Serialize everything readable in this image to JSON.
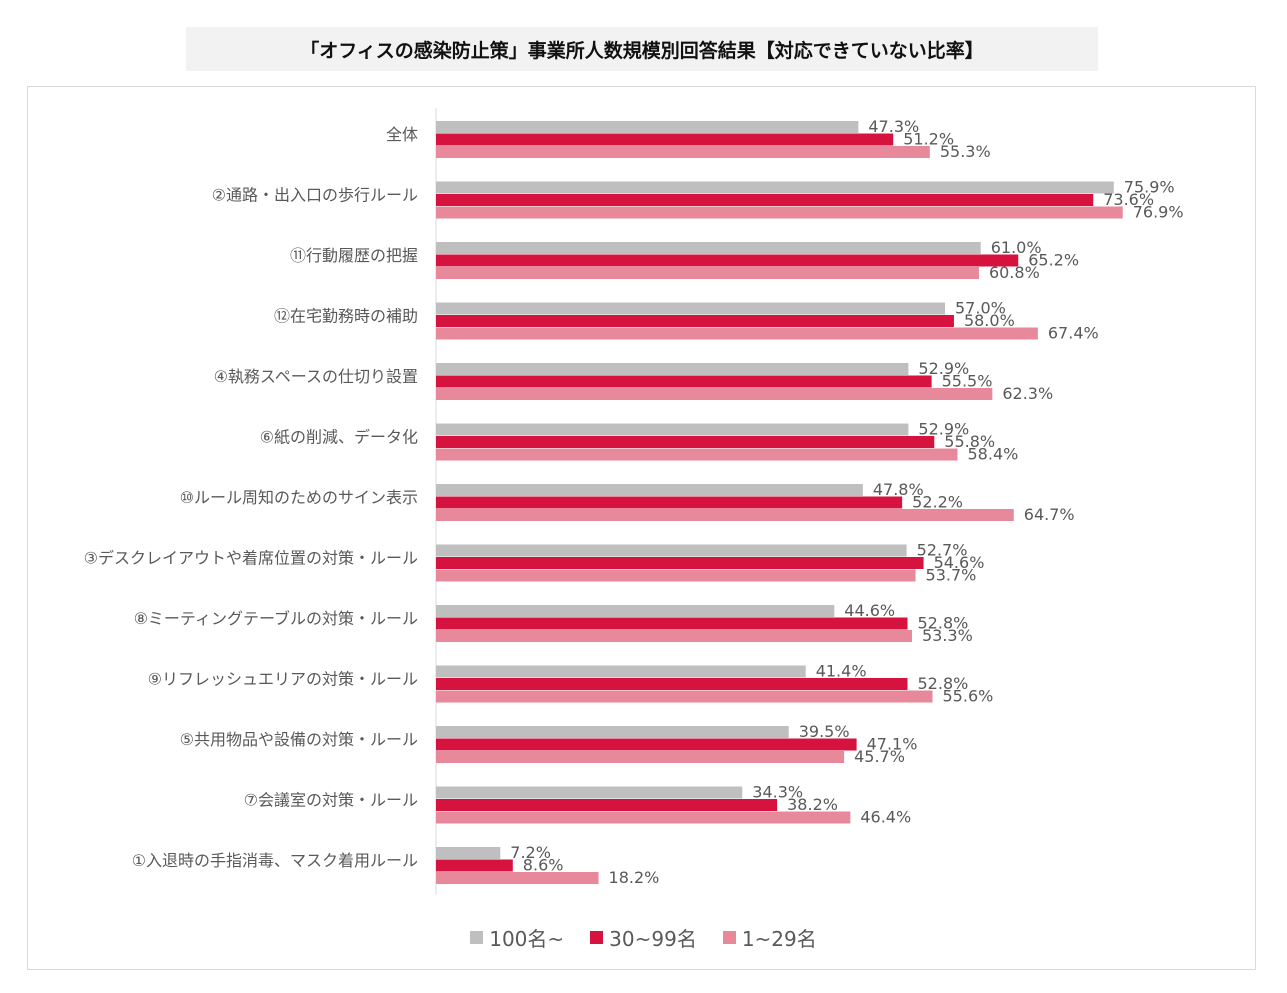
{
  "title": "「オフィスの感染防止策」事業所人数規模別回答結果【対応できていない比率】",
  "chart_data": {
    "type": "bar",
    "orientation": "horizontal",
    "categories": [
      "全体",
      "②通路・出入口の歩行ルール",
      "⑪行動履歴の把握",
      "⑫在宅勤務時の補助",
      "④執務スペースの仕切り設置",
      "⑥紙の削減、データ化",
      "⑩ルール周知のためのサイン表示",
      "③デスクレイアウトや着席位置の対策・ルール",
      "⑧ミーティングテーブルの対策・ルール",
      "⑨リフレッシュエリアの対策・ルール",
      "⑤共用物品や設備の対策・ルール",
      "⑦会議室の対策・ルール",
      "①入退時の手指消毒、マスク着用ルール"
    ],
    "series": [
      {
        "name": "100名~",
        "color": "#bfbfbf",
        "values": [
          47.3,
          75.9,
          61.0,
          57.0,
          52.9,
          52.9,
          47.8,
          52.7,
          44.6,
          41.4,
          39.5,
          34.3,
          7.2
        ],
        "labels": [
          "47.3%",
          "75.9%",
          "61.0%",
          "57.0%",
          "52.9%",
          "52.9%",
          "47.8%",
          "52.7%",
          "44.6%",
          "41.4%",
          "39.5%",
          "34.3%",
          "7.2%"
        ]
      },
      {
        "name": "30~99名",
        "color": "#d6123f",
        "values": [
          51.2,
          73.6,
          65.2,
          58.0,
          55.5,
          55.8,
          52.2,
          54.6,
          52.8,
          52.8,
          47.1,
          38.2,
          8.6
        ],
        "labels": [
          "51.2%",
          "73.6%",
          "65.2%",
          "58.0%",
          "55.5%",
          "55.8%",
          "52.2%",
          "54.6%",
          "52.8%",
          "52.8%",
          "47.1%",
          "38.2%",
          "8.6%"
        ]
      },
      {
        "name": "1~29名",
        "color": "#e8889b",
        "values": [
          55.3,
          76.9,
          60.8,
          67.4,
          62.3,
          58.4,
          64.7,
          53.7,
          53.3,
          55.6,
          45.7,
          46.4,
          18.2
        ],
        "labels": [
          "55.3%",
          "76.9%",
          "60.8%",
          "67.4%",
          "62.3%",
          "58.4%",
          "64.7%",
          "53.7%",
          "53.3%",
          "55.6%",
          "45.7%",
          "46.4%",
          "18.2%"
        ]
      }
    ],
    "xlim": [
      0,
      100
    ],
    "grid": false,
    "legend_position": "bottom"
  }
}
